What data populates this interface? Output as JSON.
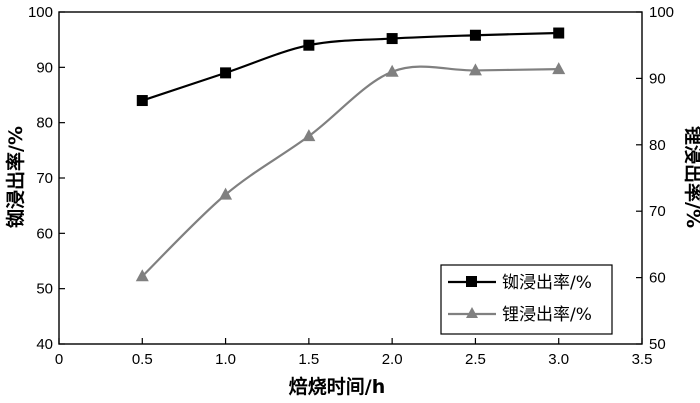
{
  "chart_data": {
    "type": "line",
    "xlabel": "焙烧时间/h",
    "ylabel_left": "铷浸出率/%",
    "ylabel_right": "锂浸出率/%",
    "xlim": [
      0,
      3.5
    ],
    "ylim_left": [
      40,
      100
    ],
    "ylim_right": [
      50,
      100
    ],
    "x_ticks": [
      "0",
      "0.5",
      "1.0",
      "1.5",
      "2.0",
      "2.5",
      "3.0",
      "3.5"
    ],
    "y_left_ticks": [
      "40",
      "50",
      "60",
      "70",
      "80",
      "90",
      "100"
    ],
    "y_right_ticks": [
      "50",
      "60",
      "70",
      "80",
      "90",
      "100"
    ],
    "grid": false,
    "legend_position": "bottom-right",
    "series": [
      {
        "name": "铷浸出率/%",
        "axis": "left",
        "marker": "square",
        "color": "#000000",
        "x": [
          0.5,
          1.0,
          1.5,
          2.0,
          2.5,
          3.0
        ],
        "values": [
          84.0,
          89.0,
          94.0,
          95.2,
          95.8,
          96.2
        ]
      },
      {
        "name": "锂浸出率/%",
        "axis": "right",
        "marker": "triangle",
        "color": "#808080",
        "x": [
          0.5,
          1.0,
          1.5,
          2.0,
          2.5,
          3.0
        ],
        "values": [
          60.2,
          72.5,
          81.3,
          91.0,
          91.2,
          91.4
        ]
      }
    ]
  }
}
